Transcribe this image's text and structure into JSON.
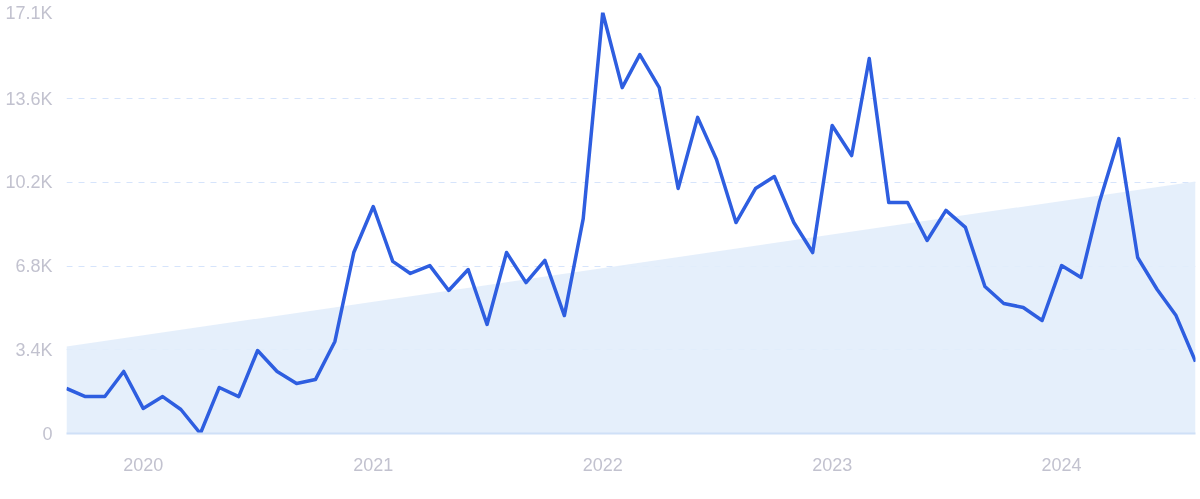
{
  "chart_data": {
    "type": "line",
    "x": [
      "2019-09",
      "2019-10",
      "2019-11",
      "2019-12",
      "2020-01",
      "2020-02",
      "2020-03",
      "2020-04",
      "2020-05",
      "2020-06",
      "2020-07",
      "2020-08",
      "2020-09",
      "2020-10",
      "2020-11",
      "2020-12",
      "2021-01",
      "2021-02",
      "2021-03",
      "2021-04",
      "2021-05",
      "2021-06",
      "2021-07",
      "2021-08",
      "2021-09",
      "2021-10",
      "2021-11",
      "2021-12",
      "2022-01",
      "2022-02",
      "2022-03",
      "2022-04",
      "2022-05",
      "2022-06",
      "2022-07",
      "2022-08",
      "2022-09",
      "2022-10",
      "2022-11",
      "2022-12",
      "2023-01",
      "2023-02",
      "2023-03",
      "2023-04",
      "2023-05",
      "2023-06",
      "2023-07",
      "2023-08",
      "2023-09",
      "2023-10",
      "2023-11",
      "2023-12",
      "2024-01",
      "2024-02",
      "2024-03",
      "2024-04",
      "2024-05",
      "2024-06",
      "2024-07",
      "2024-08"
    ],
    "series": [
      {
        "type": "area",
        "x": [
          "2019-09",
          "2024-08"
        ],
        "values": [
          3530,
          10240
        ],
        "color": "#e2edfb"
      },
      {
        "color": "#2e5ee0",
        "values": [
          1830,
          1500,
          1500,
          2520,
          1020,
          1500,
          975,
          0,
          1870,
          1500,
          3370,
          2520,
          2030,
          2190,
          3740,
          7350,
          9220,
          6990,
          6500,
          6820,
          5810,
          6660,
          4430,
          7350,
          6130,
          7030,
          4790,
          8730,
          17100,
          14050,
          15390,
          14050,
          9950,
          12840,
          11130,
          8570,
          9950,
          10440,
          8570,
          7350,
          12510,
          11290,
          15230,
          9380,
          9380,
          7840,
          9060,
          8370,
          5970,
          5280,
          5120,
          4590,
          6820,
          6340,
          9380,
          11980,
          7150,
          5850,
          4790,
          2920
        ]
      }
    ],
    "xlim": [
      "2019-09",
      "2024-08"
    ],
    "xticks": [
      {
        "value": "2020-01",
        "label": "2020"
      },
      {
        "value": "2021-01",
        "label": "2021"
      },
      {
        "value": "2022-01",
        "label": "2022"
      },
      {
        "value": "2023-01",
        "label": "2023"
      },
      {
        "value": "2024-01",
        "label": "2024"
      }
    ],
    "ylim": [
      0,
      17100
    ],
    "yticks": [
      0,
      {
        "value": 3400,
        "label": "3.4K"
      },
      {
        "value": 6800,
        "label": "6.8K"
      },
      {
        "value": 10200,
        "label": "10.2K"
      },
      {
        "value": 13600,
        "label": "13.6K"
      },
      {
        "value": 17100,
        "label": "17.1K"
      }
    ],
    "grid": "y"
  }
}
